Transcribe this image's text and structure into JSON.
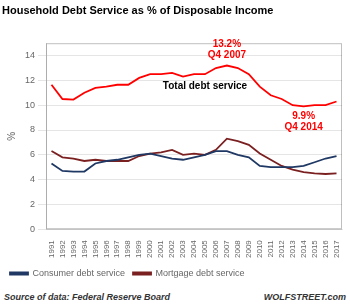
{
  "chart_data": {
    "type": "line",
    "title": "Household Debt Service as % of Disposable Income",
    "ylabel": "%",
    "source": [
      "Source of data: Federal Reserve Board",
      "WOLFSTREET.com"
    ],
    "x": [
      1991,
      1992,
      1993,
      1994,
      1995,
      1996,
      1997,
      1998,
      1999,
      2000,
      2001,
      2002,
      2003,
      2004,
      2005,
      2006,
      2007,
      2008,
      2009,
      2010,
      2011,
      2012,
      2013,
      2014,
      2015,
      2016,
      2017
    ],
    "xlim": [
      1990.5,
      2017.5
    ],
    "xticks": [
      1991,
      1992,
      1993,
      1994,
      1995,
      1996,
      1997,
      1998,
      1999,
      2000,
      2001,
      2002,
      2003,
      2004,
      2005,
      2006,
      2007,
      2008,
      2009,
      2010,
      2011,
      2012,
      2013,
      2014,
      2015,
      2016,
      2017
    ],
    "ylim": [
      0,
      15
    ],
    "yticks": [
      0,
      2,
      4,
      6,
      8,
      10,
      12,
      14
    ],
    "grid": "y",
    "legend": "bottom",
    "series": [
      {
        "color": "#FF0000",
        "values": [
          11.65,
          10.5,
          10.45,
          11.0,
          11.4,
          11.5,
          11.65,
          11.65,
          12.2,
          12.5,
          12.5,
          12.6,
          12.3,
          12.5,
          12.5,
          13.0,
          13.2,
          13.0,
          12.5,
          11.5,
          10.8,
          10.5,
          10.0,
          9.9,
          10.0,
          10.0,
          10.3
        ]
      },
      {
        "name": "Consumer debt service",
        "color": "#1F3864",
        "values": [
          5.3,
          4.7,
          4.65,
          4.65,
          5.3,
          5.5,
          5.6,
          5.8,
          6.0,
          6.1,
          5.9,
          5.7,
          5.6,
          5.8,
          6.0,
          6.3,
          6.3,
          6.0,
          5.8,
          5.1,
          5.0,
          5.0,
          5.0,
          5.1,
          5.4,
          5.7,
          5.9
        ]
      },
      {
        "name": "Mortgage debt service",
        "color": "#7B2020",
        "values": [
          6.3,
          5.8,
          5.7,
          5.5,
          5.6,
          5.5,
          5.5,
          5.5,
          5.9,
          6.1,
          6.2,
          6.4,
          6.0,
          6.1,
          6.0,
          6.4,
          7.3,
          7.1,
          6.8,
          6.1,
          5.6,
          5.1,
          4.8,
          4.6,
          4.5,
          4.45,
          4.5
        ]
      }
    ],
    "annotations": [
      {
        "text": [
          "13.2%",
          "Q4 2007"
        ],
        "x": 2007.0,
        "y": 13.2,
        "color": "#FF0000"
      },
      {
        "text": [
          "9.9%",
          "Q4 2014"
        ],
        "x": 2014.0,
        "y": 9.9,
        "color": "#FF0000"
      },
      {
        "text": "Total debt service",
        "x": 2005.0,
        "y": 11.55
      }
    ]
  }
}
